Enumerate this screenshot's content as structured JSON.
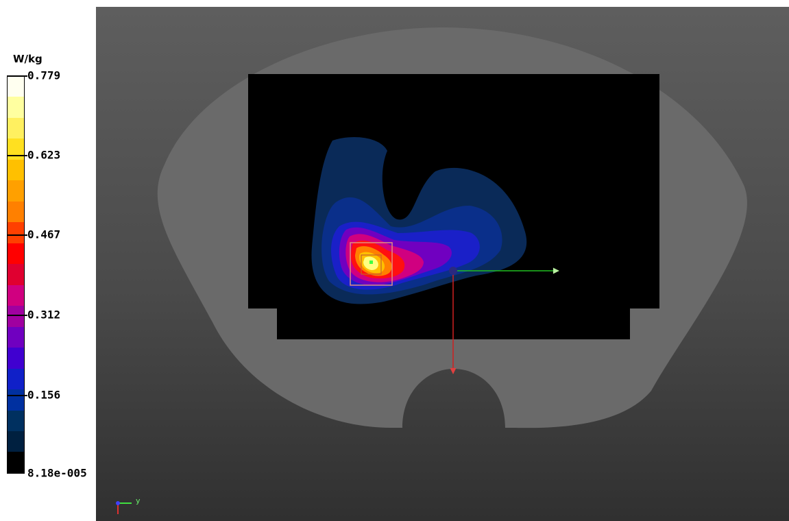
{
  "legend": {
    "unit": "W/kg",
    "ticks": [
      "0.779",
      "0.623",
      "0.467",
      "0.312",
      "0.156",
      "8.18e-005"
    ],
    "colors": [
      "#fffff0",
      "#ffffa0",
      "#fff060",
      "#ffe020",
      "#ffc000",
      "#ffa000",
      "#ff8000",
      "#ff4000",
      "#ff0000",
      "#e00030",
      "#d00080",
      "#a000a0",
      "#7000c0",
      "#4000d0",
      "#1020c8",
      "#0030a0",
      "#003060",
      "#002040",
      "#000000"
    ]
  },
  "viewport": {
    "mini_axis_label": "y",
    "colors": {
      "phantom": "#6a6a6a",
      "cutout": "#3c3c3c",
      "grid_area": "#000000",
      "x_axis": "#20c020",
      "z_axis": "#d02020",
      "origin": "#2a2a80"
    }
  }
}
